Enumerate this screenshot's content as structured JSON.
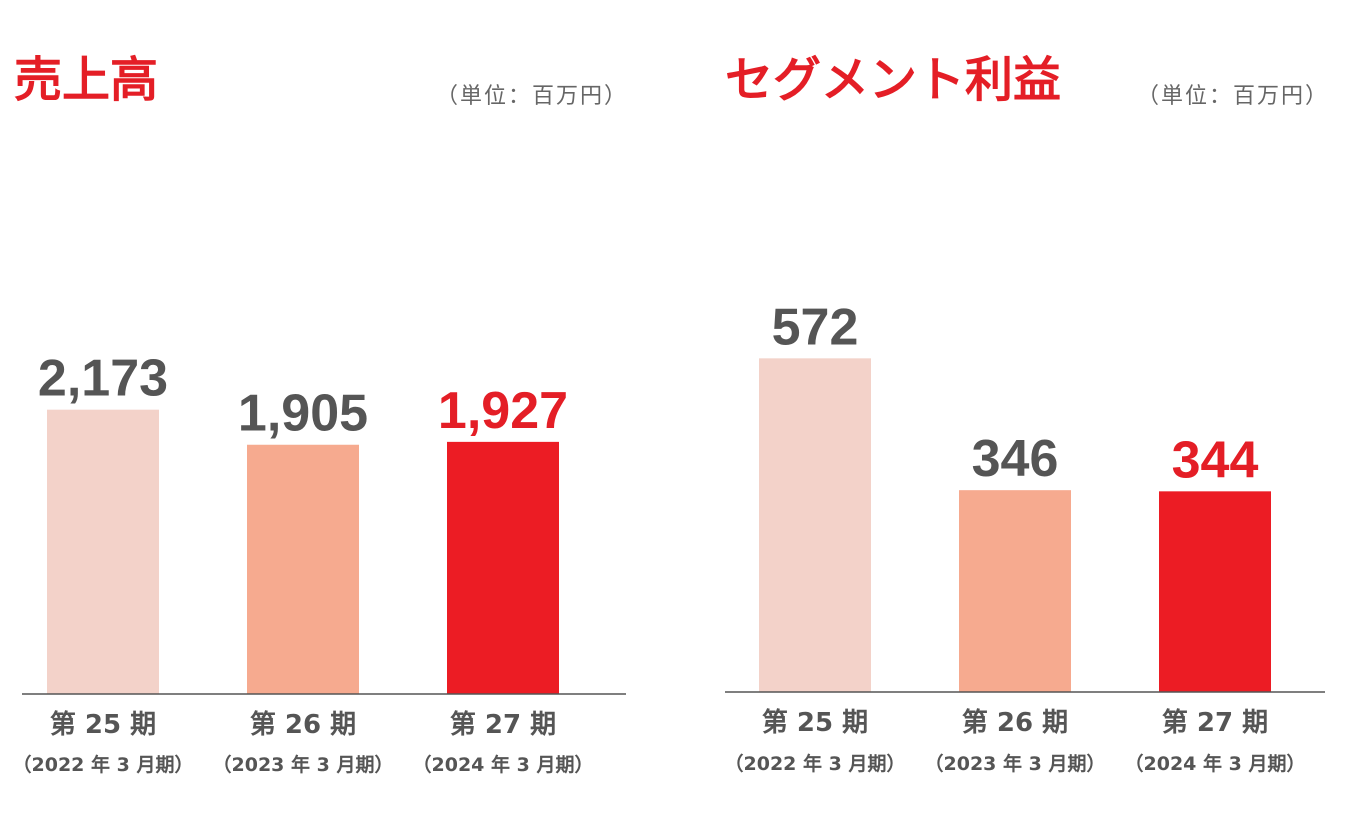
{
  "colors": {
    "accent": "#E41E26",
    "bar_colors": [
      "#F3D2C9",
      "#F6AA8F",
      "#EC1C24"
    ],
    "value_default": "#555555"
  },
  "chart_data": [
    {
      "type": "bar",
      "title": "売上高",
      "unit": "（単位：百万円）",
      "categories": [
        "第 25 期",
        "第 26 期",
        "第 27 期"
      ],
      "subcategories": [
        "（2022 年 3 月期）",
        "（2023 年 3 月期）",
        "（2024 年 3 月期）"
      ],
      "values": [
        2173,
        1905,
        1927
      ],
      "value_labels": [
        "2,173",
        "1,905",
        "1,927"
      ],
      "ylim": [
        0,
        4280
      ]
    },
    {
      "type": "bar",
      "title": "セグメント利益",
      "unit": "（単位：百万円）",
      "categories": [
        "第 25 期",
        "第 26 期",
        "第 27 期"
      ],
      "subcategories": [
        "（2022 年 3 月期）",
        "（2023 年 3 月期）",
        "（2024 年 3 月期）"
      ],
      "values": [
        572,
        346,
        344
      ],
      "value_labels": [
        "572",
        "346",
        "344"
      ],
      "ylim": [
        0,
        960
      ]
    }
  ]
}
